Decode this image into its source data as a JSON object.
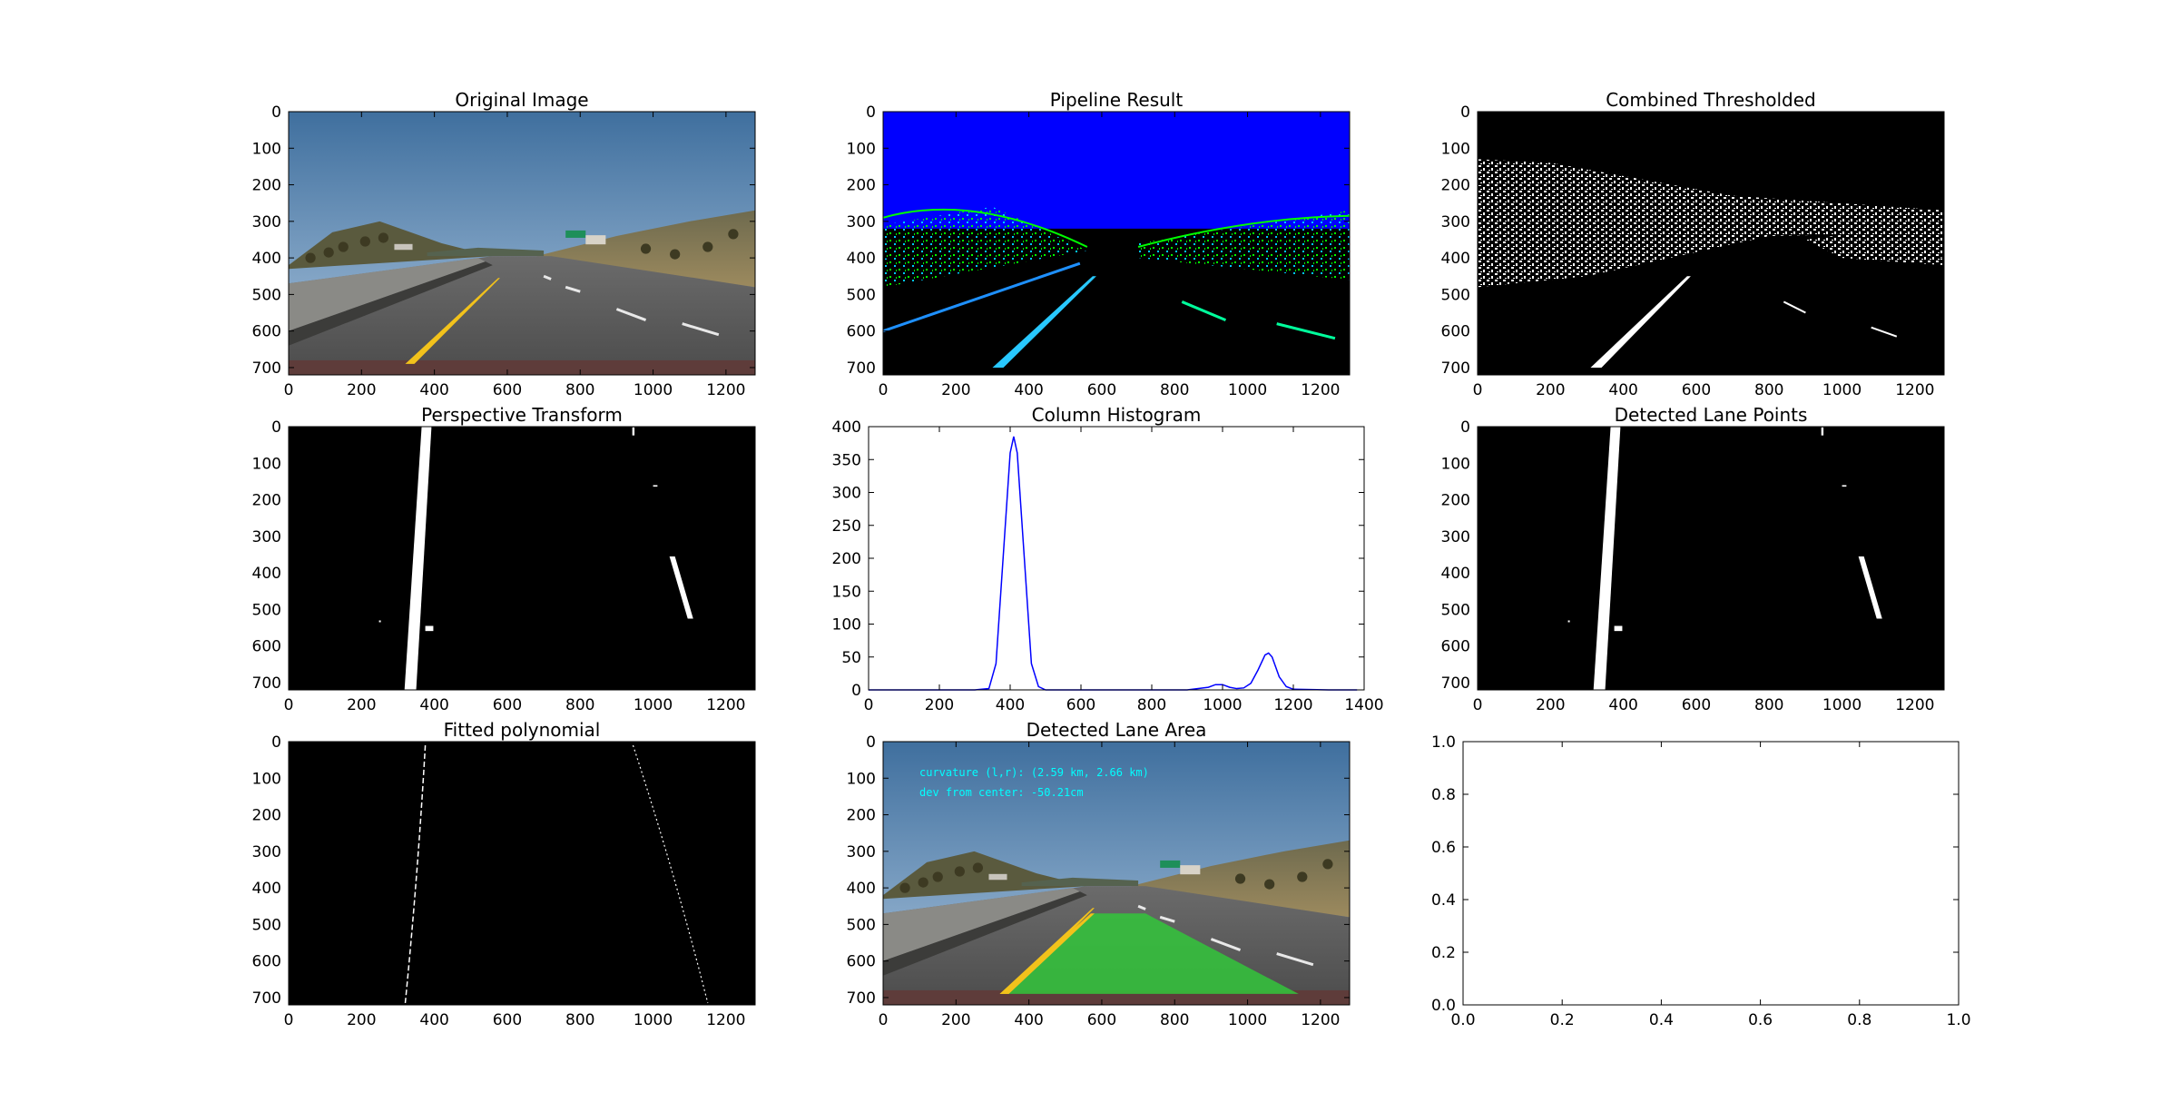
{
  "figure": {
    "panels": [
      {
        "id": "original",
        "title": "Original Image",
        "kind": "road-photo",
        "xticks": [
          0,
          200,
          400,
          600,
          800,
          1000,
          1200
        ],
        "yticks": [
          0,
          100,
          200,
          300,
          400,
          500,
          600,
          700
        ],
        "xlim": [
          0,
          1280
        ],
        "ylim": [
          0,
          720
        ]
      },
      {
        "id": "pipeline",
        "title": "Pipeline Result",
        "kind": "pipeline-edges",
        "xticks": [
          0,
          200,
          400,
          600,
          800,
          1000,
          1200
        ],
        "yticks": [
          0,
          100,
          200,
          300,
          400,
          500,
          600,
          700
        ],
        "xlim": [
          0,
          1280
        ],
        "ylim": [
          0,
          720
        ]
      },
      {
        "id": "combined",
        "title": "Combined Thresholded",
        "kind": "binary-threshold",
        "xticks": [
          0,
          200,
          400,
          600,
          800,
          1000,
          1200
        ],
        "yticks": [
          0,
          100,
          200,
          300,
          400,
          500,
          600,
          700
        ],
        "xlim": [
          0,
          1280
        ],
        "ylim": [
          0,
          720
        ]
      },
      {
        "id": "perspective",
        "title": "Perspective Transform",
        "kind": "warped-binary",
        "xticks": [
          0,
          200,
          400,
          600,
          800,
          1000,
          1200
        ],
        "yticks": [
          0,
          100,
          200,
          300,
          400,
          500,
          600,
          700
        ],
        "xlim": [
          0,
          1280
        ],
        "ylim": [
          0,
          720
        ]
      },
      {
        "id": "histogram",
        "title": "Column Histogram",
        "kind": "line-plot",
        "xticks": [
          0,
          200,
          400,
          600,
          800,
          1000,
          1200,
          1400
        ],
        "yticks": [
          0,
          50,
          100,
          150,
          200,
          250,
          300,
          350,
          400
        ],
        "xlim": [
          0,
          1400
        ],
        "ylim": [
          0,
          400
        ]
      },
      {
        "id": "lanepoints",
        "title": "Detected Lane Points",
        "kind": "warped-binary",
        "xticks": [
          0,
          200,
          400,
          600,
          800,
          1000,
          1200
        ],
        "yticks": [
          0,
          100,
          200,
          300,
          400,
          500,
          600,
          700
        ],
        "xlim": [
          0,
          1280
        ],
        "ylim": [
          0,
          720
        ]
      },
      {
        "id": "fitted",
        "title": "Fitted polynomial",
        "kind": "fitted-lines",
        "xticks": [
          0,
          200,
          400,
          600,
          800,
          1000,
          1200
        ],
        "yticks": [
          0,
          100,
          200,
          300,
          400,
          500,
          600,
          700
        ],
        "xlim": [
          0,
          1280
        ],
        "ylim": [
          0,
          720
        ]
      },
      {
        "id": "lanearea",
        "title": "Detected Lane Area",
        "kind": "road-photo-lane",
        "xticks": [
          0,
          200,
          400,
          600,
          800,
          1000,
          1200
        ],
        "yticks": [
          0,
          100,
          200,
          300,
          400,
          500,
          600,
          700
        ],
        "xlim": [
          0,
          1280
        ],
        "ylim": [
          0,
          720
        ],
        "overlay_text": [
          "curvature (l,r): (2.59 km, 2.66 km)",
          "dev from center: -50.21cm"
        ]
      },
      {
        "id": "empty",
        "title": "",
        "kind": "empty-axes",
        "xticks": [
          "0.0",
          "0.2",
          "0.4",
          "0.6",
          "0.8",
          "1.0"
        ],
        "yticks": [
          "0.0",
          "0.2",
          "0.4",
          "0.6",
          "0.8",
          "1.0"
        ],
        "xlim": [
          0,
          1
        ],
        "ylim": [
          0,
          1
        ]
      }
    ]
  },
  "chart_data": [
    {
      "type": "image",
      "title": "Original Image",
      "xlim": [
        0,
        1280
      ],
      "ylim": [
        720,
        0
      ]
    },
    {
      "type": "image",
      "title": "Pipeline Result",
      "xlim": [
        0,
        1280
      ],
      "ylim": [
        720,
        0
      ]
    },
    {
      "type": "image",
      "title": "Combined Thresholded",
      "xlim": [
        0,
        1280
      ],
      "ylim": [
        720,
        0
      ]
    },
    {
      "type": "image",
      "title": "Perspective Transform",
      "xlim": [
        0,
        1280
      ],
      "ylim": [
        720,
        0
      ]
    },
    {
      "type": "line",
      "title": "Column Histogram",
      "xlim": [
        0,
        1400
      ],
      "ylim": [
        0,
        400
      ],
      "series": [
        {
          "x": [
            0,
            100,
            200,
            300,
            340,
            360,
            380,
            400,
            410,
            420,
            440,
            460,
            480,
            500,
            600,
            700,
            800,
            900,
            960,
            980,
            1000,
            1020,
            1040,
            1060,
            1080,
            1100,
            1120,
            1130,
            1140,
            1160,
            1180,
            1200,
            1300,
            1380
          ],
          "y": [
            0,
            0,
            0,
            0,
            2,
            40,
            200,
            360,
            385,
            360,
            200,
            40,
            5,
            0,
            0,
            0,
            0,
            0,
            4,
            8,
            8,
            4,
            2,
            3,
            10,
            30,
            53,
            56,
            50,
            20,
            5,
            1,
            0,
            0
          ],
          "color": "#0000ff"
        }
      ]
    },
    {
      "type": "image",
      "title": "Detected Lane Points",
      "xlim": [
        0,
        1280
      ],
      "ylim": [
        720,
        0
      ]
    },
    {
      "type": "image",
      "title": "Fitted polynomial",
      "xlim": [
        0,
        1280
      ],
      "ylim": [
        720,
        0
      ]
    },
    {
      "type": "image",
      "title": "Detected Lane Area",
      "xlim": [
        0,
        1280
      ],
      "ylim": [
        720,
        0
      ]
    },
    {
      "type": "line",
      "title": "",
      "xlim": [
        0,
        1
      ],
      "ylim": [
        0,
        1
      ],
      "series": []
    }
  ]
}
